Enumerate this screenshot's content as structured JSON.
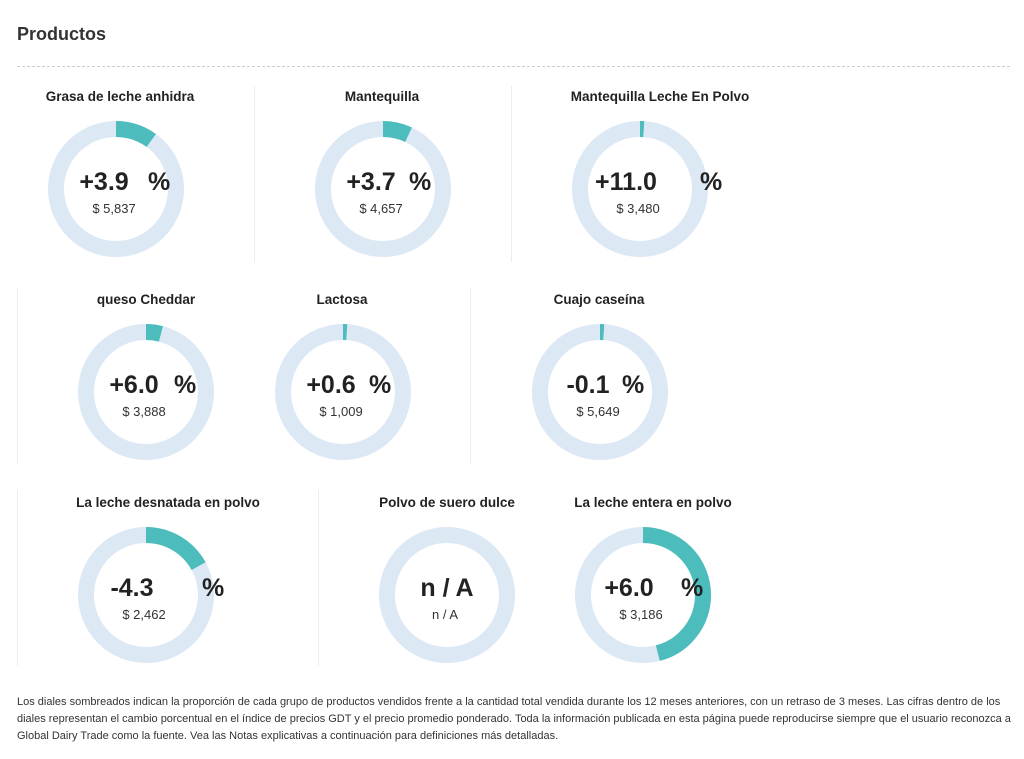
{
  "heading": "Productos",
  "colors": {
    "ring": "#dde8f5",
    "fill": "#4cbcbc"
  },
  "products": [
    {
      "name": "Grasa de leche anhidra",
      "change": "+3.9",
      "unit": "%",
      "price": "$ 5,837",
      "share": 0.1
    },
    {
      "name": "Mantequilla",
      "change": "+3.7",
      "unit": "%",
      "price": "$ 4,657",
      "share": 0.07
    },
    {
      "name": "Mantequilla Leche En Polvo",
      "change": "+11.0",
      "unit": "%",
      "price": "$ 3,480",
      "share": 0.01
    },
    {
      "name": "queso Cheddar",
      "change": "+6.0",
      "unit": "%",
      "price": "$ 3,888",
      "share": 0.04
    },
    {
      "name": "Lactosa",
      "change": "+0.6",
      "unit": "%",
      "price": "$ 1,009",
      "share": 0.01
    },
    {
      "name": "Cuajo caseína",
      "change": "-0.1",
      "unit": "%",
      "price": "$ 5,649",
      "share": 0.01
    },
    {
      "name": "La leche desnatada en polvo",
      "change": "-4.3",
      "unit": "%",
      "price": "$ 2,462",
      "share": 0.17
    },
    {
      "name": "Polvo de suero dulce",
      "change": "n / A",
      "unit": "",
      "price": "n / A",
      "share": 0
    },
    {
      "name": "La leche entera en polvo",
      "change": "+6.0",
      "unit": "%",
      "price": "$ 3,186",
      "share": 0.46
    }
  ],
  "footnote": "Los diales sombreados indican la proporción de cada grupo de productos vendidos frente a la cantidad total vendida durante los 12 meses anteriores, con un retraso de 3 meses. Las cifras dentro de los diales representan el cambio porcentual en el índice de precios GDT y el precio promedio ponderado. Toda la información publicada en esta página puede reproducirse siempre que el usuario reconozca a Global Dairy Trade como la fuente. Vea las Notas explicativas a continuación para definiciones más detalladas."
}
